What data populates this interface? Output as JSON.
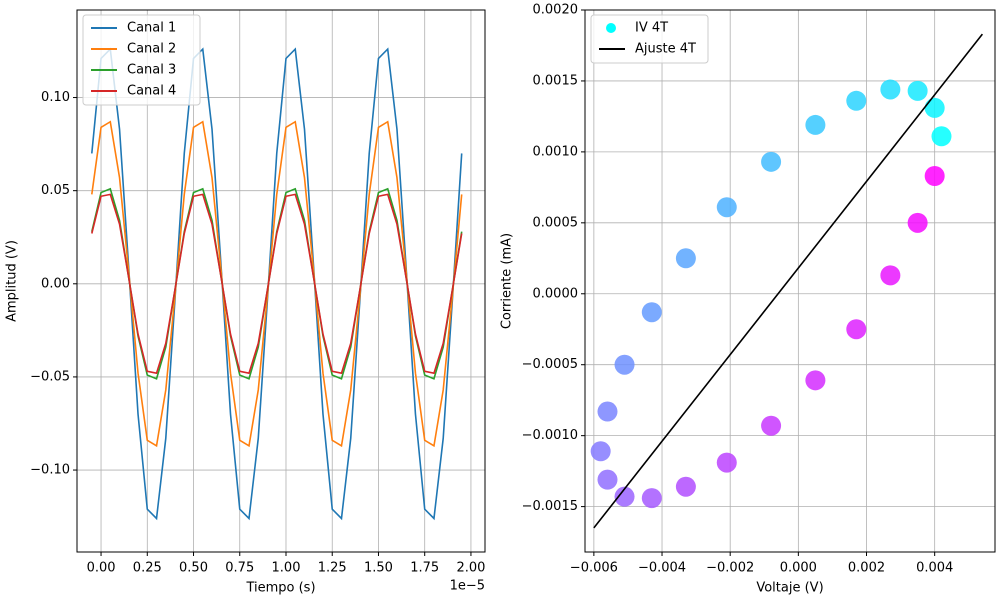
{
  "chart_data": [
    {
      "type": "line",
      "xlabel": "Tiempo (s)",
      "ylabel": "Amplitud (V)",
      "x_offset_label": "1e−5",
      "x": [
        -0.05,
        0.0,
        0.05,
        0.1,
        0.15,
        0.2,
        0.25,
        0.3,
        0.35,
        0.4,
        0.45,
        0.5,
        0.55,
        0.6,
        0.65,
        0.7,
        0.75,
        0.8,
        0.85,
        0.9,
        0.95,
        1.0,
        1.05,
        1.1,
        1.15,
        1.2,
        1.25,
        1.3,
        1.35,
        1.4,
        1.45,
        1.5,
        1.55,
        1.6,
        1.65,
        1.7,
        1.75,
        1.8,
        1.85,
        1.9,
        1.95
      ],
      "series": [
        {
          "name": "Canal 1",
          "color": "#1f77b4",
          "values": [
            0.07,
            0.121,
            0.126,
            0.083,
            0.008,
            -0.07,
            -0.121,
            -0.126,
            -0.083,
            -0.008,
            0.07,
            0.121,
            0.126,
            0.083,
            0.008,
            -0.07,
            -0.121,
            -0.126,
            -0.083,
            -0.008,
            0.07,
            0.121,
            0.126,
            0.083,
            0.008,
            -0.07,
            -0.121,
            -0.126,
            -0.083,
            -0.008,
            0.07,
            0.121,
            0.126,
            0.083,
            0.008,
            -0.07,
            -0.121,
            -0.126,
            -0.083,
            -0.008,
            0.07
          ]
        },
        {
          "name": "Canal 2",
          "color": "#ff7f0e",
          "values": [
            0.048,
            0.084,
            0.087,
            0.057,
            0.006,
            -0.048,
            -0.084,
            -0.087,
            -0.057,
            -0.006,
            0.048,
            0.084,
            0.087,
            0.057,
            0.006,
            -0.048,
            -0.084,
            -0.087,
            -0.057,
            -0.006,
            0.048,
            0.084,
            0.087,
            0.057,
            0.006,
            -0.048,
            -0.084,
            -0.087,
            -0.057,
            -0.006,
            0.048,
            0.084,
            0.087,
            0.057,
            0.006,
            -0.048,
            -0.084,
            -0.087,
            -0.057,
            -0.006,
            0.048
          ]
        },
        {
          "name": "Canal 3",
          "color": "#2ca02c",
          "values": [
            0.028,
            0.049,
            0.051,
            0.034,
            0.003,
            -0.028,
            -0.049,
            -0.051,
            -0.034,
            -0.003,
            0.028,
            0.049,
            0.051,
            0.034,
            0.003,
            -0.028,
            -0.049,
            -0.051,
            -0.034,
            -0.003,
            0.028,
            0.049,
            0.051,
            0.034,
            0.003,
            -0.028,
            -0.049,
            -0.051,
            -0.034,
            -0.003,
            0.028,
            0.049,
            0.051,
            0.034,
            0.003,
            -0.028,
            -0.049,
            -0.051,
            -0.034,
            -0.003,
            0.028
          ]
        },
        {
          "name": "Canal 4",
          "color": "#d62728",
          "values": [
            0.027,
            0.047,
            0.048,
            0.032,
            0.003,
            -0.027,
            -0.047,
            -0.048,
            -0.032,
            -0.003,
            0.027,
            0.047,
            0.048,
            0.032,
            0.003,
            -0.027,
            -0.047,
            -0.048,
            -0.032,
            -0.003,
            0.027,
            0.047,
            0.048,
            0.032,
            0.003,
            -0.027,
            -0.047,
            -0.048,
            -0.032,
            -0.003,
            0.027,
            0.047,
            0.048,
            0.032,
            0.003,
            -0.027,
            -0.047,
            -0.048,
            -0.032,
            -0.003,
            0.027
          ]
        }
      ],
      "xlim": [
        -0.13,
        2.076
      ],
      "ylim": [
        -0.144,
        0.147
      ],
      "xticks": [
        {
          "value": 0,
          "label": "0.00"
        },
        {
          "value": 0.25,
          "label": "0.25"
        },
        {
          "value": 0.5,
          "label": "0.50"
        },
        {
          "value": 0.75,
          "label": "0.75"
        },
        {
          "value": 1,
          "label": "1.00"
        },
        {
          "value": 1.25,
          "label": "1.25"
        },
        {
          "value": 1.5,
          "label": "1.50"
        },
        {
          "value": 1.75,
          "label": "1.75"
        },
        {
          "value": 2,
          "label": "2.00"
        }
      ],
      "yticks": [
        {
          "value": -0.1,
          "label": "−0.10"
        },
        {
          "value": -0.05,
          "label": "−0.05"
        },
        {
          "value": 0,
          "label": "0.00"
        },
        {
          "value": 0.05,
          "label": "0.05"
        },
        {
          "value": 0.1,
          "label": "0.10"
        }
      ],
      "grid": true,
      "legend": "upper left"
    },
    {
      "type": "scatter",
      "xlabel": "Voltaje (V)",
      "ylabel": "Corriente (mA)",
      "series": [
        {
          "name": "IV 4T",
          "type": "scatter",
          "color": "#00ffff",
          "cmap": [
            "#00ffff",
            "#ff00ff"
          ],
          "x": [
            0.0042,
            0.004,
            0.0035,
            0.0027,
            0.0017,
            0.0005,
            -0.0008,
            -0.0021,
            -0.0033,
            -0.0043,
            -0.0051,
            -0.0056,
            -0.0058,
            -0.0056,
            -0.0051,
            -0.0043,
            -0.0033,
            -0.0021,
            -0.0008,
            0.0005,
            0.0017,
            0.0027,
            0.0035,
            0.004
          ],
          "values": [
            0.00111,
            0.00131,
            0.00143,
            0.00144,
            0.00136,
            0.00119,
            0.00093,
            0.00061,
            0.00025,
            -0.00013,
            -0.0005,
            -0.00083,
            -0.00111,
            -0.00131,
            -0.00143,
            -0.00144,
            -0.00136,
            -0.00119,
            -0.00093,
            -0.00061,
            -0.00025,
            0.00013,
            0.0005,
            0.00083
          ]
        },
        {
          "name": "Ajuste 4T",
          "type": "line",
          "color": "#000000",
          "x": [
            -0.006,
            0.0054
          ],
          "values": [
            -0.00165,
            0.00183
          ]
        }
      ],
      "xlim": [
        -0.00626,
        0.00577
      ],
      "ylim": [
        -0.00182,
        0.002
      ],
      "xticks": [
        {
          "value": -0.006,
          "label": "−0.006"
        },
        {
          "value": -0.004,
          "label": "−0.004"
        },
        {
          "value": -0.002,
          "label": "−0.002"
        },
        {
          "value": 0,
          "label": "0.000"
        },
        {
          "value": 0.002,
          "label": "0.002"
        },
        {
          "value": 0.004,
          "label": "0.004"
        }
      ],
      "yticks": [
        {
          "value": -0.0015,
          "label": "−0.0015"
        },
        {
          "value": -0.001,
          "label": "−0.0010"
        },
        {
          "value": -0.0005,
          "label": "−0.0005"
        },
        {
          "value": 0,
          "label": "0.0000"
        },
        {
          "value": 0.0005,
          "label": "0.0005"
        },
        {
          "value": 0.001,
          "label": "0.0010"
        },
        {
          "value": 0.0015,
          "label": "0.0015"
        },
        {
          "value": 0.002,
          "label": "0.0020"
        }
      ],
      "grid": true,
      "legend": "upper left"
    }
  ]
}
